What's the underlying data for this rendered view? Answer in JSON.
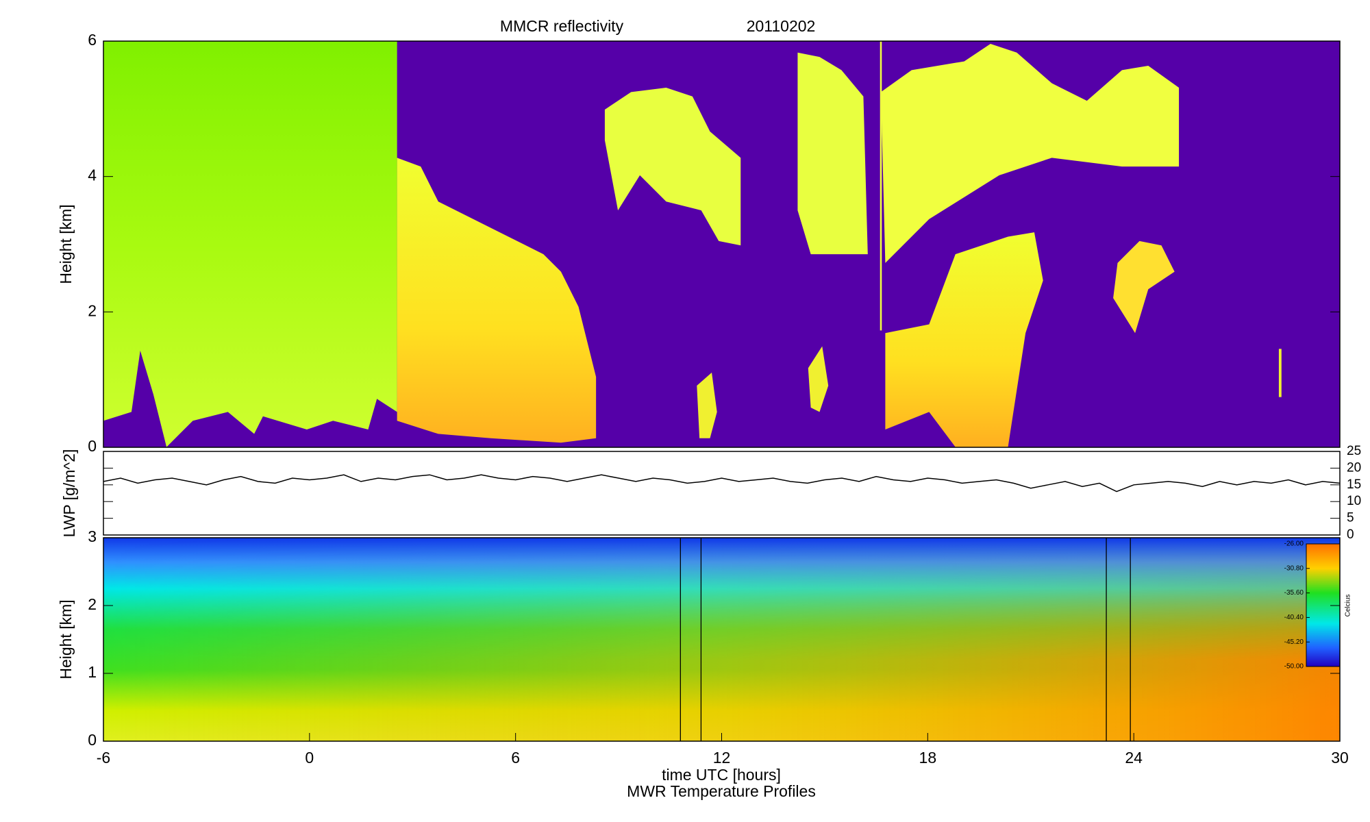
{
  "chart_data": [
    {
      "type": "heatmap",
      "title": "MMCR reflectivity",
      "date": "20110202",
      "ylabel": "Height [km]",
      "xlim": [
        -6,
        30
      ],
      "ylim": [
        0,
        6
      ],
      "yticks": [
        0,
        2,
        4,
        6
      ]
    },
    {
      "type": "line",
      "ylabel": "LWP [g/m^2]",
      "xlim": [
        -6,
        30
      ],
      "ylim": [
        0,
        25
      ],
      "yticks": [
        0,
        5,
        10,
        15,
        20,
        25
      ],
      "yaxis_side": "right",
      "series": [
        {
          "color": "#000000",
          "x": [
            -6,
            -5.5,
            -5,
            -4.5,
            -4,
            -3.5,
            -3,
            -2.5,
            -2,
            -1.5,
            -1,
            -0.5,
            0,
            0.5,
            1,
            1.5,
            2,
            2.5,
            3,
            3.5,
            4,
            4.5,
            5,
            5.5,
            6,
            6.5,
            7,
            7.5,
            8,
            8.5,
            9,
            9.5,
            10,
            10.5,
            11,
            11.5,
            12,
            12.5,
            13,
            13.5,
            14,
            14.5,
            15,
            15.5,
            16,
            16.5,
            17,
            17.5,
            18,
            18.5,
            19,
            19.5,
            20,
            20.5,
            21,
            21.5,
            22,
            22.5,
            23,
            23.5,
            24,
            24.5,
            25,
            25.5,
            26,
            26.5,
            27,
            27.5,
            28,
            28.5,
            29,
            29.5,
            30
          ],
          "values": [
            16,
            17,
            15.5,
            16.5,
            17,
            16,
            15,
            16.5,
            17.5,
            16,
            15.5,
            17,
            16.5,
            17,
            18,
            16,
            17,
            16.5,
            17.5,
            18,
            16.5,
            17,
            18,
            17,
            16.5,
            17.5,
            17,
            16,
            17,
            18,
            17,
            16,
            17,
            16.5,
            15.5,
            16,
            17,
            16,
            16.5,
            17,
            16,
            15.5,
            16.5,
            17,
            16,
            17.5,
            16.5,
            16,
            17,
            16.5,
            15.5,
            16,
            16.5,
            15.5,
            14,
            15,
            16,
            14.5,
            15.5,
            13,
            15,
            15.5,
            16,
            15.5,
            14.5,
            16,
            15,
            16,
            15.5,
            16.5,
            15,
            16,
            15.5
          ]
        }
      ]
    },
    {
      "type": "contour",
      "caption": "MWR Temperature Profiles",
      "xlabel": "time UTC [hours]",
      "ylabel": "Height [km]",
      "xlim": [
        -6,
        30
      ],
      "xticks": [
        -6,
        0,
        6,
        12,
        18,
        24,
        30
      ],
      "ylim": [
        0,
        3
      ],
      "yticks": [
        0,
        1,
        2,
        3
      ],
      "vlines": [
        10.8,
        11.4,
        23.2,
        23.9
      ],
      "colorbar": {
        "label": "Celcius",
        "lim": [
          -50,
          -26
        ],
        "ticks": [
          {
            "value": -26,
            "label": "-26.00"
          },
          {
            "value": -30.8,
            "label": "-30.80"
          },
          {
            "value": -35.6,
            "label": "-35.60"
          },
          {
            "value": -40.4,
            "label": "-40.40"
          },
          {
            "value": -45.2,
            "label": "-45.20"
          },
          {
            "value": -50,
            "label": "-50.00"
          }
        ]
      }
    }
  ]
}
